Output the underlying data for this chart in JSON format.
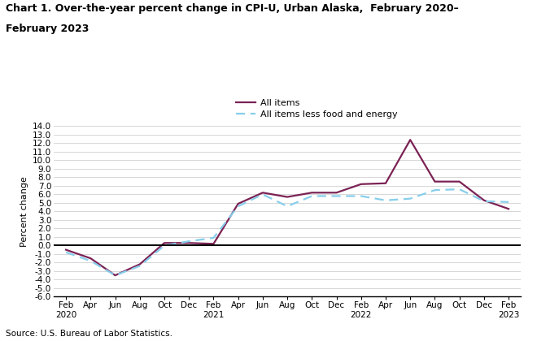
{
  "title_line1": "Chart 1. Over-the-year percent change in CPI-U, Urban Alaska,  February 2020–",
  "title_line2": "February 2023",
  "ylabel": "Percent change",
  "source": "Source: U.S. Bureau of Labor Statistics.",
  "ylim": [
    -6.0,
    14.0
  ],
  "yticks": [
    -6.0,
    -5.0,
    -4.0,
    -3.0,
    -2.0,
    -1.0,
    0.0,
    1.0,
    2.0,
    3.0,
    4.0,
    5.0,
    6.0,
    7.0,
    8.0,
    9.0,
    10.0,
    11.0,
    12.0,
    13.0,
    14.0
  ],
  "x_labels": [
    "Feb\n2020",
    "Apr",
    "Jun",
    "Aug",
    "Oct",
    "Dec",
    "Feb\n2021",
    "Apr",
    "Jun",
    "Aug",
    "Oct",
    "Dec",
    "Feb\n2022",
    "Apr",
    "Jun",
    "Aug",
    "Oct",
    "Dec",
    "Feb\n2023"
  ],
  "all_items": [
    -0.5,
    -1.5,
    -3.5,
    -2.2,
    0.3,
    0.3,
    0.2,
    4.9,
    6.2,
    5.7,
    6.2,
    6.2,
    7.2,
    7.3,
    12.4,
    7.5,
    7.5,
    5.3,
    4.3
  ],
  "all_items_less": [
    -0.8,
    -1.8,
    -3.5,
    -2.4,
    0.0,
    0.5,
    0.9,
    4.6,
    6.0,
    4.6,
    5.8,
    5.8,
    5.8,
    5.3,
    5.5,
    6.5,
    6.6,
    5.2,
    5.1
  ],
  "line1_color": "#7B2254",
  "line2_color": "#87CEEB",
  "line1_label": "All items",
  "line2_label": "All items less food and energy",
  "background_color": "#ffffff"
}
